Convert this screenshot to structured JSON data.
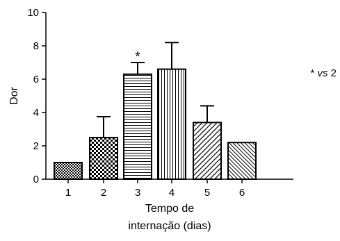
{
  "chart_data": {
    "type": "bar",
    "categories": [
      "1",
      "2",
      "3",
      "4",
      "5",
      "6"
    ],
    "values": [
      1.0,
      2.5,
      6.3,
      6.6,
      3.4,
      2.2
    ],
    "errors": [
      0,
      1.25,
      0.7,
      1.6,
      1.0,
      0
    ],
    "ylabel": "Dor",
    "xlabel_line1": "Tempo de",
    "xlabel_line2": "internação (dias)",
    "ylim": [
      0,
      10
    ],
    "yticks": [
      "0",
      "2",
      "4",
      "6",
      "8",
      "10"
    ],
    "significance_marker": "*",
    "significance_category": "3",
    "note_star": "*",
    "note_vs": "vs",
    "note_ref": "2",
    "grid": false,
    "patterns": [
      "checker-small",
      "checker-large",
      "horizontal",
      "vertical",
      "diagonal-up",
      "diagonal-down"
    ]
  }
}
